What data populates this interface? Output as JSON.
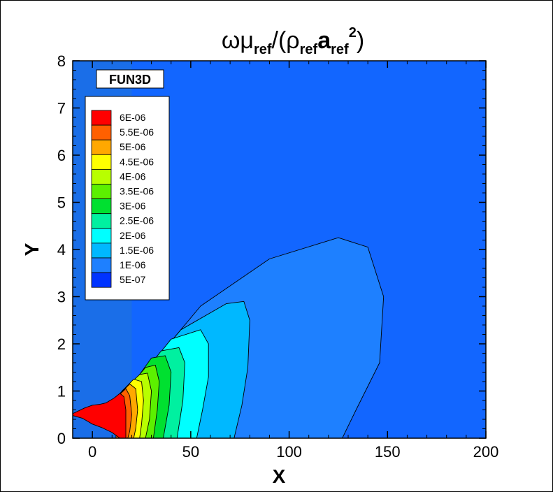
{
  "chart_data": {
    "type": "contour",
    "title": {
      "parts": [
        {
          "text": "ωμ",
          "style": "normal"
        },
        {
          "text": "ref",
          "style": "sub"
        },
        {
          "text": "/(ρ",
          "style": "normal"
        },
        {
          "text": "ref",
          "style": "sub"
        },
        {
          "text": "a",
          "style": "bold"
        },
        {
          "text": "ref",
          "style": "sub"
        },
        {
          "text": "2",
          "style": "sup"
        },
        {
          "text": ")",
          "style": "normal"
        }
      ]
    },
    "badge": "FUN3D",
    "xlabel": "X",
    "ylabel": "Y",
    "xlim": [
      -10,
      200
    ],
    "ylim": [
      0,
      8
    ],
    "xticks": [
      {
        "value": 0,
        "label": "0"
      },
      {
        "value": 50,
        "label": "50"
      },
      {
        "value": 100,
        "label": "100"
      },
      {
        "value": 150,
        "label": "150"
      },
      {
        "value": 200,
        "label": "200"
      }
    ],
    "yticks": [
      {
        "value": 0,
        "label": "0"
      },
      {
        "value": 1,
        "label": "1"
      },
      {
        "value": 2,
        "label": "2"
      },
      {
        "value": 3,
        "label": "3"
      },
      {
        "value": 4,
        "label": "4"
      },
      {
        "value": 5,
        "label": "5"
      },
      {
        "value": 6,
        "label": "6"
      },
      {
        "value": 7,
        "label": "7"
      },
      {
        "value": 8,
        "label": "8"
      }
    ],
    "background_level_color": "#1266ff",
    "upstream_region": {
      "x_end": 20,
      "color": "#1a6ee8"
    },
    "legend": {
      "placement": "top-left",
      "levels": [
        {
          "value": 6e-06,
          "label": "6E-06",
          "color": "#ff0000"
        },
        {
          "value": 5.5e-06,
          "label": "5.5E-06",
          "color": "#ff6000"
        },
        {
          "value": 5e-06,
          "label": "5E-06",
          "color": "#ffa800"
        },
        {
          "value": 4.5e-06,
          "label": "4.5E-06",
          "color": "#ffff00"
        },
        {
          "value": 4e-06,
          "label": "4E-06",
          "color": "#b8ff00"
        },
        {
          "value": 3.5e-06,
          "label": "3.5E-06",
          "color": "#5cf000"
        },
        {
          "value": 3e-06,
          "label": "3E-06",
          "color": "#00e030"
        },
        {
          "value": 2.5e-06,
          "label": "2.5E-06",
          "color": "#00f0a0"
        },
        {
          "value": 2e-06,
          "label": "2E-06",
          "color": "#00ffff"
        },
        {
          "value": 1.5e-06,
          "label": "1.5E-06",
          "color": "#00b8ff"
        },
        {
          "value": 1e-06,
          "label": "1E-06",
          "color": "#1e80ff"
        },
        {
          "value": 5e-07,
          "label": "5E-07",
          "color": "#0033ff"
        }
      ]
    },
    "contours": [
      {
        "level": 1e-06,
        "color": "#1e80ff",
        "points": [
          [
            19,
            1
          ],
          [
            55,
            2.8
          ],
          [
            90,
            3.8
          ],
          [
            125,
            4.25
          ],
          [
            140,
            4.05
          ],
          [
            148,
            3
          ],
          [
            146,
            1.6
          ],
          [
            134,
            0.6
          ],
          [
            127,
            0
          ]
        ]
      },
      {
        "level": 1.5e-06,
        "color": "#00b8ff",
        "points": [
          [
            19,
            1
          ],
          [
            45,
            2.3
          ],
          [
            68,
            2.85
          ],
          [
            77,
            2.9
          ],
          [
            80,
            2.5
          ],
          [
            79,
            1.5
          ],
          [
            76,
            0.7
          ],
          [
            72,
            0
          ]
        ]
      },
      {
        "level": 2e-06,
        "color": "#00ffff",
        "points": [
          [
            19,
            1
          ],
          [
            40,
            2.1
          ],
          [
            55,
            2.3
          ],
          [
            59,
            2
          ],
          [
            59,
            1.3
          ],
          [
            56,
            0.6
          ],
          [
            53,
            0
          ]
        ]
      },
      {
        "level": 2.5e-06,
        "color": "#00f0a0",
        "points": [
          [
            19,
            1
          ],
          [
            35,
            1.85
          ],
          [
            44,
            1.92
          ],
          [
            47,
            1.6
          ],
          [
            46,
            0.8
          ],
          [
            43,
            0
          ]
        ]
      },
      {
        "level": 3e-06,
        "color": "#00e030",
        "points": [
          [
            18,
            1
          ],
          [
            30,
            1.7
          ],
          [
            37,
            1.75
          ],
          [
            40,
            1.4
          ],
          [
            39,
            0.7
          ],
          [
            36,
            0
          ]
        ]
      },
      {
        "level": 3.5e-06,
        "color": "#5cf000",
        "points": [
          [
            17,
            1
          ],
          [
            27,
            1.5
          ],
          [
            32,
            1.55
          ],
          [
            34,
            1.2
          ],
          [
            33,
            0.6
          ],
          [
            31,
            0
          ]
        ]
      },
      {
        "level": 4e-06,
        "color": "#b8ff00",
        "points": [
          [
            15,
            1
          ],
          [
            24,
            1.35
          ],
          [
            28,
            1.38
          ],
          [
            30,
            1
          ],
          [
            29,
            0.4
          ],
          [
            27,
            0
          ]
        ]
      },
      {
        "level": 4.5e-06,
        "color": "#ffff00",
        "points": [
          [
            14,
            0.95
          ],
          [
            21,
            1.25
          ],
          [
            25,
            1.2
          ],
          [
            26,
            0.8
          ],
          [
            25,
            0.3
          ],
          [
            24,
            0
          ]
        ]
      },
      {
        "level": 5e-06,
        "color": "#ffa800",
        "points": [
          [
            13,
            0.9
          ],
          [
            19,
            1.15
          ],
          [
            22,
            1.05
          ],
          [
            23,
            0.6
          ],
          [
            22,
            0.2
          ],
          [
            21,
            0
          ]
        ]
      },
      {
        "level": 5.5e-06,
        "color": "#ff6000",
        "points": [
          [
            12,
            0.85
          ],
          [
            17,
            1.05
          ],
          [
            19,
            0.9
          ],
          [
            20,
            0.5
          ],
          [
            19,
            0.15
          ],
          [
            18,
            0
          ]
        ]
      },
      {
        "level": 6e-06,
        "color": "#ff0000",
        "points": [
          [
            -10,
            0.52
          ],
          [
            -4,
            0.64
          ],
          [
            0,
            0.7
          ],
          [
            4,
            0.72
          ],
          [
            7,
            0.75
          ],
          [
            11,
            0.85
          ],
          [
            14,
            0.95
          ],
          [
            16,
            0.88
          ],
          [
            17,
            0.6
          ],
          [
            17,
            0.3
          ],
          [
            17,
            0
          ],
          [
            14,
            0
          ],
          [
            10,
            0.12
          ],
          [
            5,
            0.22
          ],
          [
            0,
            0.3
          ],
          [
            -5,
            0.42
          ],
          [
            -10,
            0.48
          ]
        ]
      }
    ],
    "grid": false
  }
}
